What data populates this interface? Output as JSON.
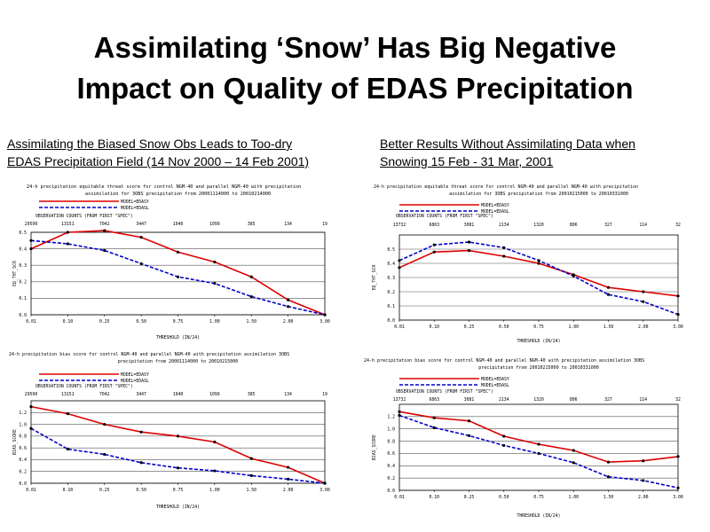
{
  "slide": {
    "title_line1": "Assimilating ‘Snow’ Has Big Negative",
    "title_line2": "Impact on Quality of EDAS Precipitation",
    "left_caption_line1": "Assimilating the Biased Snow Obs Leads to Too-dry",
    "left_caption_line2": "EDAS Precipitation Field (14 Nov 2000 – 14 Feb 2001)",
    "right_caption_line1": "Better Results Without Assimilating Data when",
    "right_caption_line2": "Snowing 15 Feb - 31 Mar, 2001"
  },
  "chart_data": [
    {
      "type": "line",
      "title_line1": "24-h precipitation equitable threat score for control NGM-40 and parallel NGM-40 with precipitation",
      "title_line2": "assimilation for 3OBS precipitation from 20001114000 to 20010214000",
      "ylabel": "EQ_THT_SCR",
      "xlabel": "THRESHOLD (IN/24)",
      "obs_header": "OBSERVATION COUNTS (FROM FIRST \"SPEC\")",
      "x": [
        "0.01",
        "0.10",
        "0.25",
        "0.50",
        "0.75",
        "1.00",
        "1.50",
        "2.00",
        "3.00"
      ],
      "obs_counts": [
        "29590",
        "13151",
        "7042",
        "3447",
        "1940",
        "1099",
        "385",
        "134",
        "19"
      ],
      "yticks": [
        "0.0",
        "0.1",
        "0.2",
        "0.3",
        "0.4",
        "0.5"
      ],
      "ylim": [
        0,
        0.5
      ],
      "series": [
        {
          "name": "MODEL=EDASY",
          "color": "#dd0000",
          "style": "solid",
          "values": [
            0.4,
            0.5,
            0.51,
            0.47,
            0.38,
            0.32,
            0.23,
            0.09,
            0.0
          ]
        },
        {
          "name": "MODEL=EDASL",
          "color": "#0000cc",
          "style": "dashed",
          "values": [
            0.45,
            0.43,
            0.39,
            0.31,
            0.23,
            0.19,
            0.11,
            0.05,
            0.0
          ]
        }
      ]
    },
    {
      "type": "line",
      "title_line1": "24-h precipitation equitable threat score for control NGM-40 and parallel NGM-40 with precipitation",
      "title_line2": "assimilation for 3OBS precipitation from 20010215000 to 20010331000",
      "ylabel": "EQ_THT_SCR",
      "xlabel": "THRESHOLD (IN/24)",
      "obs_header": "OBSERVATION COUNTS (FROM FIRST \"SPEC\")",
      "x": [
        "0.01",
        "0.10",
        "0.25",
        "0.50",
        "0.75",
        "1.00",
        "1.50",
        "2.00",
        "3.00"
      ],
      "obs_counts": [
        "13732",
        "6863",
        "3081",
        "2134",
        "1320",
        "806",
        "327",
        "114",
        "32"
      ],
      "yticks": [
        "0.0",
        "0.1",
        "0.2",
        "0.3",
        "0.4",
        "0.5"
      ],
      "ylim": [
        0,
        0.6
      ],
      "series": [
        {
          "name": "MODEL=EDASY",
          "color": "#dd0000",
          "style": "solid",
          "values": [
            0.37,
            0.48,
            0.49,
            0.45,
            0.4,
            0.32,
            0.23,
            0.2,
            0.17
          ]
        },
        {
          "name": "MODEL=EDASL",
          "color": "#0000cc",
          "style": "dashed",
          "values": [
            0.42,
            0.53,
            0.55,
            0.51,
            0.42,
            0.31,
            0.18,
            0.13,
            0.04
          ]
        }
      ]
    },
    {
      "type": "line",
      "title_line1": "24-h precipitation bias score for control NGM-40 and parallel NGM-40 with precipitation assimilation 3OBS",
      "title_line2": "precipitation from 20001114000 to 20010215000",
      "ylabel": "BIAS_SCORE",
      "xlabel": "THRESHOLD (IN/24)",
      "obs_header": "OBSERVATION COUNTS (FROM FIRST \"SPEC\")",
      "x": [
        "0.01",
        "0.10",
        "0.25",
        "0.50",
        "0.75",
        "1.00",
        "1.50",
        "2.00",
        "3.00"
      ],
      "obs_counts": [
        "29590",
        "13151",
        "7042",
        "3447",
        "1940",
        "1099",
        "385",
        "134",
        "19"
      ],
      "yticks": [
        "0.0",
        "0.2",
        "0.4",
        "0.6",
        "0.8",
        "1.0",
        "1.2"
      ],
      "ylim": [
        0,
        1.4
      ],
      "series": [
        {
          "name": "MODEL=EDASY",
          "color": "#dd0000",
          "style": "solid",
          "values": [
            1.3,
            1.18,
            1.0,
            0.87,
            0.8,
            0.7,
            0.42,
            0.27,
            0.0
          ]
        },
        {
          "name": "MODEL=EDASL",
          "color": "#0000cc",
          "style": "dashed",
          "values": [
            0.93,
            0.58,
            0.49,
            0.35,
            0.26,
            0.21,
            0.13,
            0.07,
            0.0
          ]
        }
      ]
    },
    {
      "type": "line",
      "title_line1": "24-h precipitation bias score for control NGM-40 and parallel NGM-40 with precipitation assimilation 3OBS",
      "title_line2": "precipitation from 20010215000 to 20010331000",
      "ylabel": "BIAS_SCORE",
      "xlabel": "THRESHOLD (IN/24)",
      "obs_header": "OBSERVATION COUNTS (FROM FIRST \"SPEC\")",
      "x": [
        "0.01",
        "0.10",
        "0.25",
        "0.50",
        "0.75",
        "1.00",
        "1.50",
        "2.00",
        "3.00"
      ],
      "obs_counts": [
        "13732",
        "6863",
        "3081",
        "2134",
        "1320",
        "806",
        "327",
        "114",
        "32"
      ],
      "yticks": [
        "0.0",
        "0.2",
        "0.4",
        "0.6",
        "0.8",
        "1.0",
        "1.2"
      ],
      "ylim": [
        0,
        1.4
      ],
      "series": [
        {
          "name": "MODEL=EDASY",
          "color": "#dd0000",
          "style": "solid",
          "values": [
            1.28,
            1.18,
            1.13,
            0.88,
            0.75,
            0.65,
            0.46,
            0.48,
            0.55
          ]
        },
        {
          "name": "MODEL=EDASL",
          "color": "#0000cc",
          "style": "dashed",
          "values": [
            1.22,
            1.02,
            0.89,
            0.73,
            0.6,
            0.45,
            0.22,
            0.16,
            0.04
          ]
        }
      ]
    }
  ]
}
